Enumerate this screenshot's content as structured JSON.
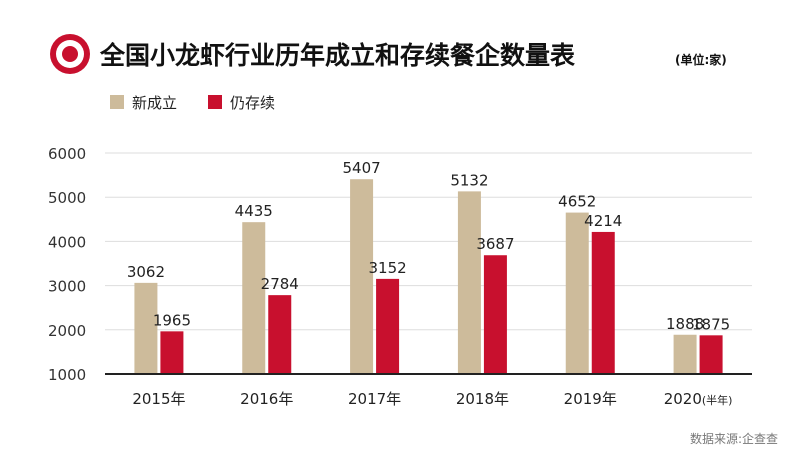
{
  "title": "全国小龙虾行业历年成立和存续餐企数量表",
  "unit": "(单位:家)",
  "source": "数据来源:企查查",
  "colors": {
    "accent": "#c8102e",
    "new": "#cdbb9b",
    "existing": "#c8102e",
    "axis": "#222222",
    "grid": "#dddddd"
  },
  "chart_data": {
    "type": "bar",
    "categories": [
      "2015年",
      "2016年",
      "2017年",
      "2018年",
      "2019年",
      "2020"
    ],
    "category_suffix": [
      "",
      "",
      "",
      "",
      "",
      "(半年)"
    ],
    "series": [
      {
        "name": "新成立",
        "values": [
          3062,
          4435,
          5407,
          5132,
          4652,
          1888
        ]
      },
      {
        "name": "仍存续",
        "values": [
          1965,
          2784,
          3152,
          3687,
          4214,
          1875
        ]
      }
    ],
    "yticks": [
      1000,
      2000,
      3000,
      4000,
      5000,
      6000
    ],
    "ylim": [
      1000,
      6000
    ],
    "grid": true,
    "legend_position": "top-left"
  }
}
